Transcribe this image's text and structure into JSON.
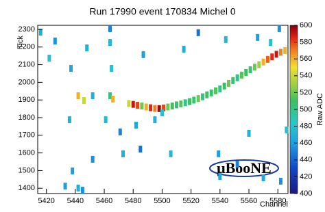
{
  "chart_data": {
    "type": "heatmap",
    "title": "Run 17990 event 170834 Michel 0",
    "x_label": "Channel",
    "y_label": "Tick",
    "z_label": "Raw ADC",
    "logo": "μBooNE",
    "xlim": [
      5414,
      5587
    ],
    "xticks": [
      5420,
      5440,
      5460,
      5480,
      5500,
      5520,
      5540,
      5560,
      5580
    ],
    "ylim": [
      1370,
      2323
    ],
    "yticks": [
      1400,
      1500,
      1600,
      1700,
      1800,
      1900,
      2000,
      2100,
      2200,
      2300
    ],
    "zlim": [
      400,
      600
    ],
    "zticks": [
      400,
      420,
      440,
      460,
      480,
      500,
      520,
      540,
      560,
      580,
      600
    ],
    "x": [
      5477,
      5480,
      5483,
      5486,
      5489,
      5492,
      5495,
      5498,
      5501,
      5504,
      5507,
      5510,
      5513,
      5516,
      5519,
      5522,
      5525,
      5528,
      5531,
      5534,
      5537,
      5540,
      5543,
      5546,
      5549,
      5552,
      5555,
      5558,
      5561,
      5564,
      5567,
      5570,
      5573,
      5576,
      5579,
      5582,
      5585,
      5416,
      5426,
      5422,
      5437,
      5448,
      5464,
      5464,
      5465,
      5487,
      5515,
      5525,
      5544,
      5566,
      5575,
      5581,
      5442,
      5446,
      5452,
      5464,
      5466,
      5461,
      5436,
      5471,
      5482,
      5495,
      5500,
      5438,
      5452,
      5473,
      5485,
      5506,
      5539,
      5552,
      5540,
      5442,
      5445,
      5433,
      5586,
      5560,
      5582,
      5570
    ],
    "y": [
      1880,
      1875,
      1870,
      1866,
      1860,
      1856,
      1852,
      1851,
      1855,
      1860,
      1866,
      1872,
      1878,
      1884,
      1891,
      1899,
      1908,
      1918,
      1929,
      1940,
      1952,
      1963,
      1979,
      1994,
      2010,
      2026,
      2041,
      2056,
      2071,
      2086,
      2100,
      2115,
      2130,
      2144,
      2159,
      2170,
      2180,
      2284,
      2234,
      2137,
      2079,
      2195,
      2304,
      2226,
      2079,
      2157,
      2188,
      2281,
      2242,
      2254,
      2226,
      2304,
      1924,
      1897,
      1924,
      1924,
      1905,
      1788,
      1788,
      1719,
      1757,
      1788,
      1827,
      1498,
      1564,
      1595,
      1622,
      1595,
      1595,
      1536,
      1467,
      1401,
      1389,
      1412,
      1730,
      1711,
      1440,
      1459
    ],
    "z": [
      540,
      590,
      580,
      520,
      560,
      585,
      570,
      595,
      580,
      520,
      510,
      505,
      515,
      500,
      510,
      505,
      520,
      500,
      510,
      505,
      515,
      500,
      510,
      520,
      505,
      500,
      515,
      510,
      505,
      520,
      530,
      560,
      575,
      585,
      590,
      570,
      560,
      470,
      455,
      480,
      465,
      470,
      450,
      475,
      480,
      460,
      470,
      445,
      475,
      460,
      480,
      455,
      560,
      540,
      470,
      500,
      560,
      475,
      470,
      450,
      465,
      470,
      480,
      460,
      455,
      470,
      445,
      475,
      460,
      450,
      465,
      470,
      455,
      460,
      480,
      470,
      455,
      465
    ]
  }
}
